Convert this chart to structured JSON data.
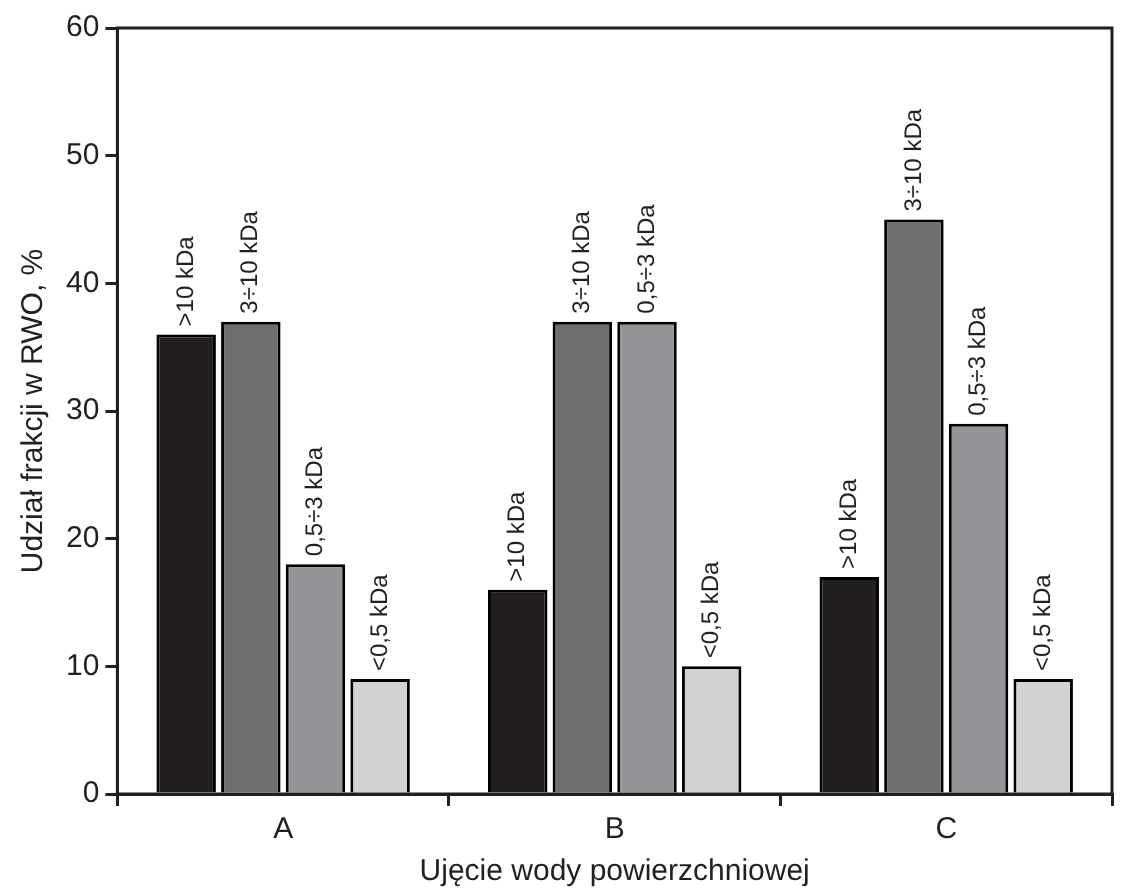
{
  "chart_data": {
    "type": "bar",
    "xlabel": "Ujęcie wody powierzchniowej",
    "ylabel": "Udział frakcji w RWO, %",
    "categories": [
      "A",
      "B",
      "C"
    ],
    "series": [
      {
        "name": ">10 kDa",
        "color": "#231f20",
        "values": [
          36,
          16,
          17
        ]
      },
      {
        "name": "3÷10 kDa",
        "color": "#6d6e70",
        "values": [
          37,
          37,
          45
        ]
      },
      {
        "name": "0,5÷3 kDa",
        "color": "#939598",
        "values": [
          18,
          37,
          29
        ]
      },
      {
        "name": "<0,5 kDa",
        "color": "#d1d2d4",
        "values": [
          9,
          10,
          9
        ]
      }
    ],
    "ylim": [
      0,
      60
    ],
    "yticks": [
      0,
      10,
      20,
      30,
      40,
      50,
      60
    ],
    "grid": false,
    "legend": false
  }
}
